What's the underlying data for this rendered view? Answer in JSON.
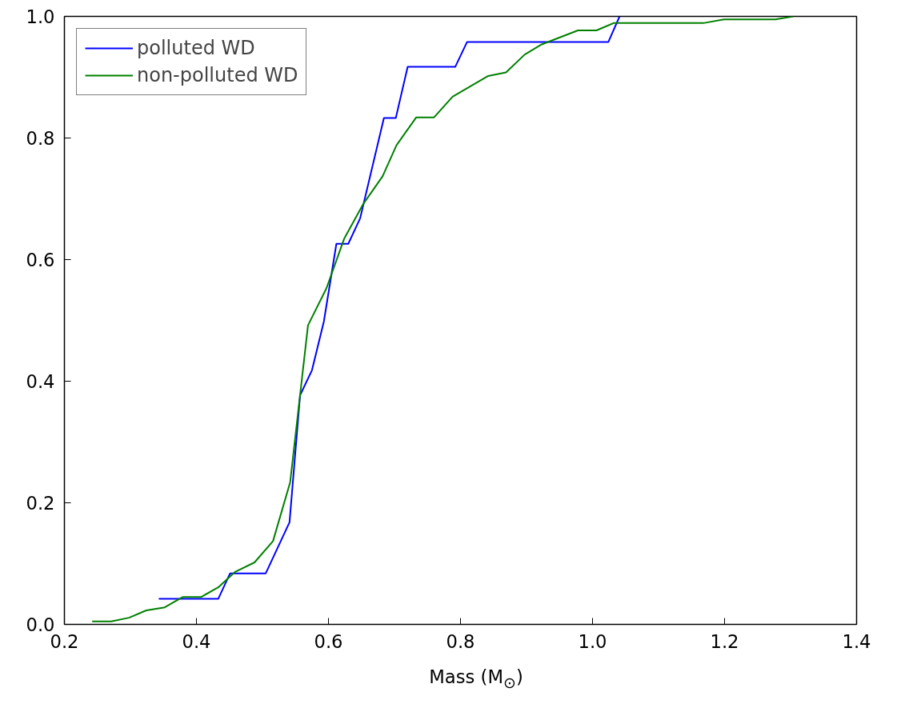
{
  "chart_data": {
    "type": "line",
    "xlabel": "Mass (M$_{⊙}$)",
    "xlim": [
      0.2,
      1.4
    ],
    "xticks": [
      0.2,
      0.4,
      0.6,
      0.8,
      {
        "value": 1,
        "label": "1.0"
      },
      1.2,
      1.4
    ],
    "ylim": [
      0,
      1
    ],
    "yticks": [
      {
        "value": 0,
        "label": "0.0"
      },
      0.2,
      0.4,
      0.6,
      0.8,
      {
        "value": 1,
        "label": "1.0"
      }
    ],
    "grid": false,
    "legend": "top left",
    "marker": "none",
    "line_style": "solid",
    "series": [
      {
        "name": "polluted WD",
        "color": "#0000ff",
        "x": [
          0.343,
          0.433,
          0.451,
          0.505,
          0.541,
          0.557,
          0.575,
          0.593,
          0.612,
          0.63,
          0.648,
          0.684,
          0.702,
          0.72,
          0.792,
          0.81,
          1.024,
          1.041
        ],
        "values": [
          0.042,
          0.042,
          0.084,
          0.084,
          0.168,
          0.377,
          0.418,
          0.498,
          0.626,
          0.626,
          0.668,
          0.833,
          0.833,
          0.917,
          0.917,
          0.958,
          0.958,
          1.0
        ]
      },
      {
        "name": "non-polluted WD",
        "color": "#008000",
        "x": [
          0.242,
          0.271,
          0.298,
          0.324,
          0.352,
          0.379,
          0.407,
          0.433,
          0.458,
          0.488,
          0.516,
          0.542,
          0.569,
          0.597,
          0.624,
          0.653,
          0.682,
          0.703,
          0.733,
          0.76,
          0.788,
          0.842,
          0.869,
          0.897,
          0.923,
          0.978,
          1.006,
          1.032,
          1.168,
          1.199,
          1.277,
          1.304
        ],
        "values": [
          0.005,
          0.005,
          0.011,
          0.023,
          0.028,
          0.045,
          0.045,
          0.061,
          0.086,
          0.102,
          0.137,
          0.234,
          0.492,
          0.553,
          0.635,
          0.692,
          0.737,
          0.788,
          0.834,
          0.834,
          0.868,
          0.902,
          0.908,
          0.937,
          0.954,
          0.977,
          0.977,
          0.989,
          0.989,
          0.995,
          0.995,
          1.0
        ]
      }
    ]
  }
}
